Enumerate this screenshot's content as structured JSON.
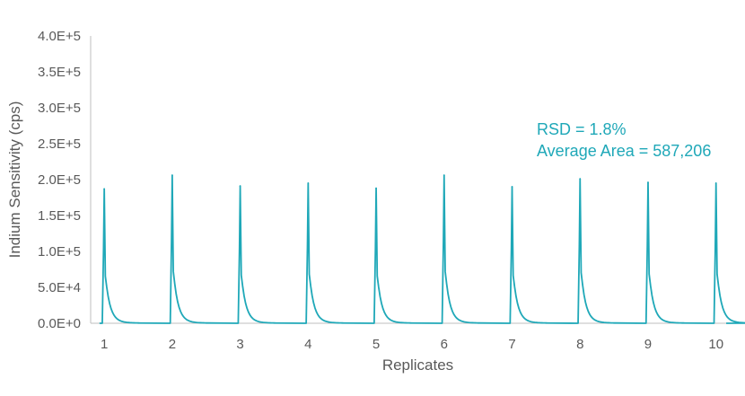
{
  "chart_data": {
    "type": "line",
    "title": "",
    "xlabel": "Replicates",
    "ylabel": "Indium Sensitivity (cps)",
    "ylim": [
      0,
      400000
    ],
    "xlim": [
      0.8,
      10.4
    ],
    "grid": false,
    "legend": "none",
    "y_ticks": [
      {
        "value": 0,
        "label": "0.0E+0"
      },
      {
        "value": 50000,
        "label": "5.0E+4"
      },
      {
        "value": 100000,
        "label": "1.0E+5"
      },
      {
        "value": 150000,
        "label": "1.5E+5"
      },
      {
        "value": 200000,
        "label": "2.0E+5"
      },
      {
        "value": 250000,
        "label": "2.5E+5"
      },
      {
        "value": 300000,
        "label": "3.0E+5"
      },
      {
        "value": 350000,
        "label": "3.5E+5"
      },
      {
        "value": 400000,
        "label": "4.0E+5"
      }
    ],
    "x_ticks": [
      {
        "value": 1,
        "label": "1"
      },
      {
        "value": 2,
        "label": "2"
      },
      {
        "value": 3,
        "label": "3"
      },
      {
        "value": 4,
        "label": "4"
      },
      {
        "value": 5,
        "label": "5"
      },
      {
        "value": 6,
        "label": "6"
      },
      {
        "value": 7,
        "label": "7"
      },
      {
        "value": 8,
        "label": "8"
      },
      {
        "value": 9,
        "label": "9"
      },
      {
        "value": 10,
        "label": "10"
      }
    ],
    "series": [
      {
        "color": "#1fa8b8",
        "peaks": [
          {
            "replicate": 1,
            "peak_height": 187000
          },
          {
            "replicate": 2,
            "peak_height": 206000
          },
          {
            "replicate": 3,
            "peak_height": 191000
          },
          {
            "replicate": 4,
            "peak_height": 195000
          },
          {
            "replicate": 5,
            "peak_height": 188000
          },
          {
            "replicate": 6,
            "peak_height": 206000
          },
          {
            "replicate": 7,
            "peak_height": 190000
          },
          {
            "replicate": 8,
            "peak_height": 201000
          },
          {
            "replicate": 9,
            "peak_height": 196000
          },
          {
            "replicate": 10,
            "peak_height": 195000
          }
        ]
      }
    ],
    "annotations": [
      {
        "text": "RSD = 1.8%",
        "color": "#1fa8b8"
      },
      {
        "text": "Average Area = 587,206",
        "color": "#1fa8b8"
      }
    ]
  },
  "colors": {
    "series": "#1fa8b8",
    "axis": "#bfbfbf",
    "text": "#595959"
  }
}
